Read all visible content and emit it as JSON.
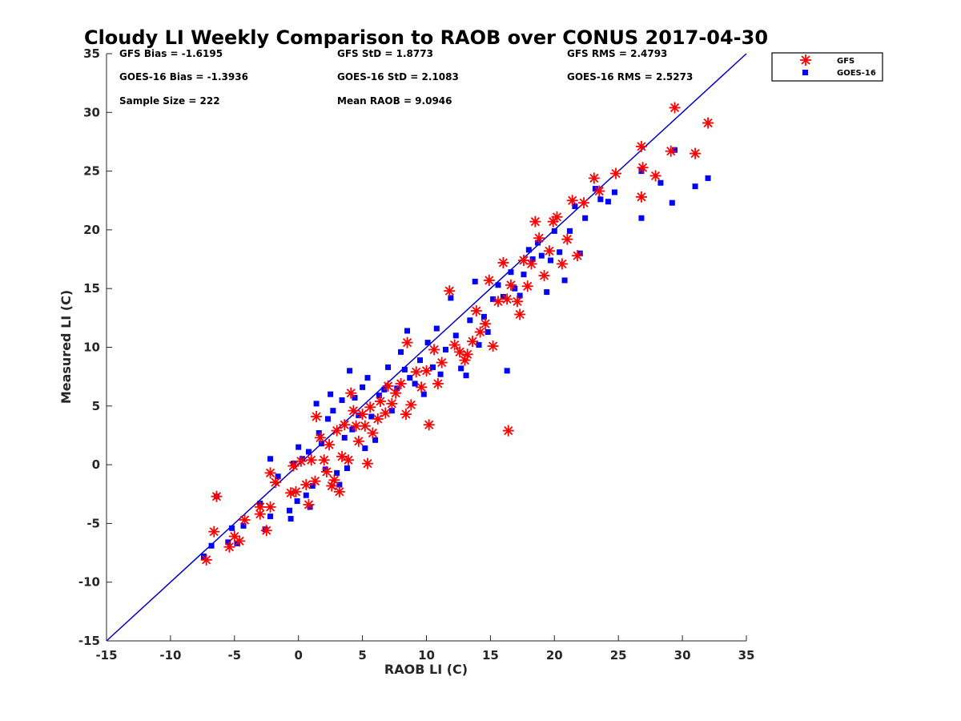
{
  "chart_data": {
    "type": "scatter",
    "title": "Cloudy LI Weekly Comparison to RAOB over CONUS 2017-04-30",
    "xlabel": "RAOB LI (C)",
    "ylabel": "Measured LI (C)",
    "xlim": [
      -15,
      35
    ],
    "ylim": [
      -15,
      35
    ],
    "xticks": [
      "-15",
      "-10",
      "-5",
      "0",
      "5",
      "10",
      "15",
      "20",
      "25",
      "30",
      "35"
    ],
    "yticks": [
      "-15",
      "-10",
      "-5",
      "0",
      "5",
      "10",
      "15",
      "20",
      "25",
      "30",
      "35"
    ],
    "grid": false,
    "legend_position": "top-right, outside plot",
    "reference_line": {
      "from": [
        -15,
        -15
      ],
      "to": [
        35,
        35
      ],
      "color": "#0000cc"
    },
    "stats": {
      "gfs_bias": "GFS Bias = -1.6195",
      "gfs_std": "GFS StD = 1.8773",
      "gfs_rms": "GFS RMS = 2.4793",
      "goes_bias": "GOES-16 Bias = -1.3936",
      "goes_std": "GOES-16 StD = 2.1083",
      "goes_rms": "GOES-16 RMS = 2.5273",
      "sample_size": "Sample Size = 222",
      "mean_raob": "Mean RAOB = 9.0946"
    },
    "series": [
      {
        "name": "GFS",
        "marker": "asterisk",
        "color": "#ff0000",
        "points": [
          [
            -7.2,
            -8.1
          ],
          [
            -6.6,
            -5.7
          ],
          [
            -6.4,
            -2.7
          ],
          [
            -5.4,
            -7.0
          ],
          [
            -5.0,
            -6.1
          ],
          [
            -4.6,
            -6.5
          ],
          [
            -4.2,
            -4.7
          ],
          [
            -3.0,
            -3.6
          ],
          [
            -3.0,
            -4.2
          ],
          [
            -2.5,
            -5.6
          ],
          [
            -2.2,
            -3.6
          ],
          [
            -2.2,
            -0.7
          ],
          [
            -1.8,
            -1.5
          ],
          [
            -0.6,
            -2.4
          ],
          [
            -0.4,
            -0.1
          ],
          [
            -0.2,
            -2.3
          ],
          [
            0.2,
            0.3
          ],
          [
            0.6,
            -1.7
          ],
          [
            0.8,
            -3.4
          ],
          [
            1.0,
            0.4
          ],
          [
            1.3,
            -1.4
          ],
          [
            1.4,
            4.1
          ],
          [
            1.7,
            2.3
          ],
          [
            2.0,
            0.4
          ],
          [
            2.2,
            -0.6
          ],
          [
            2.4,
            1.7
          ],
          [
            2.6,
            -1.8
          ],
          [
            2.8,
            -1.3
          ],
          [
            3.0,
            2.9
          ],
          [
            3.2,
            -2.3
          ],
          [
            3.4,
            0.7
          ],
          [
            3.6,
            3.4
          ],
          [
            3.9,
            0.4
          ],
          [
            4.1,
            6.1
          ],
          [
            4.3,
            4.6
          ],
          [
            4.5,
            3.3
          ],
          [
            4.7,
            2.0
          ],
          [
            5.0,
            4.3
          ],
          [
            5.2,
            3.3
          ],
          [
            5.4,
            0.1
          ],
          [
            5.6,
            4.9
          ],
          [
            5.8,
            2.7
          ],
          [
            6.2,
            3.9
          ],
          [
            6.4,
            5.4
          ],
          [
            6.8,
            4.4
          ],
          [
            7.0,
            6.7
          ],
          [
            7.3,
            5.2
          ],
          [
            7.6,
            6.1
          ],
          [
            8.0,
            6.9
          ],
          [
            8.4,
            4.3
          ],
          [
            8.5,
            10.4
          ],
          [
            8.8,
            5.1
          ],
          [
            9.2,
            7.9
          ],
          [
            9.6,
            6.6
          ],
          [
            10.0,
            8.0
          ],
          [
            10.2,
            3.4
          ],
          [
            10.6,
            9.8
          ],
          [
            10.9,
            6.9
          ],
          [
            11.2,
            8.7
          ],
          [
            11.8,
            14.8
          ],
          [
            12.2,
            10.2
          ],
          [
            12.6,
            9.6
          ],
          [
            13.0,
            8.9
          ],
          [
            13.2,
            9.4
          ],
          [
            13.6,
            10.5
          ],
          [
            13.9,
            13.1
          ],
          [
            14.2,
            11.3
          ],
          [
            14.6,
            12.0
          ],
          [
            14.9,
            15.7
          ],
          [
            15.2,
            10.1
          ],
          [
            15.6,
            13.9
          ],
          [
            16.0,
            17.2
          ],
          [
            16.3,
            14.1
          ],
          [
            16.4,
            2.9
          ],
          [
            16.6,
            15.3
          ],
          [
            17.1,
            13.9
          ],
          [
            17.3,
            12.8
          ],
          [
            17.6,
            17.4
          ],
          [
            17.9,
            15.2
          ],
          [
            18.2,
            17.1
          ],
          [
            18.5,
            20.7
          ],
          [
            18.8,
            19.3
          ],
          [
            19.2,
            16.1
          ],
          [
            19.6,
            18.2
          ],
          [
            19.9,
            20.7
          ],
          [
            20.2,
            21.1
          ],
          [
            20.6,
            17.1
          ],
          [
            21.0,
            19.2
          ],
          [
            21.4,
            22.5
          ],
          [
            21.8,
            17.8
          ],
          [
            22.3,
            22.3
          ],
          [
            23.1,
            24.4
          ],
          [
            23.5,
            23.3
          ],
          [
            24.8,
            24.8
          ],
          [
            26.8,
            27.1
          ],
          [
            26.8,
            22.8
          ],
          [
            26.9,
            25.3
          ],
          [
            27.9,
            24.6
          ],
          [
            29.1,
            26.7
          ],
          [
            29.4,
            30.4
          ],
          [
            31.0,
            26.5
          ],
          [
            32.0,
            29.1
          ]
        ]
      },
      {
        "name": "GOES-16",
        "marker": "square",
        "color": "#0000ff",
        "points": [
          [
            -7.4,
            -7.8
          ],
          [
            -6.8,
            -6.9
          ],
          [
            -6.4,
            -2.7
          ],
          [
            -5.5,
            -6.6
          ],
          [
            -5.2,
            -5.4
          ],
          [
            -4.8,
            -6.7
          ],
          [
            -4.3,
            -5.2
          ],
          [
            -3.0,
            -3.3
          ],
          [
            -2.6,
            -5.5
          ],
          [
            -2.2,
            0.5
          ],
          [
            -2.2,
            -4.4
          ],
          [
            -1.6,
            -1.0
          ],
          [
            -0.7,
            -3.9
          ],
          [
            -0.6,
            -4.6
          ],
          [
            -0.4,
            0.1
          ],
          [
            -0.1,
            -3.1
          ],
          [
            0.0,
            1.5
          ],
          [
            0.3,
            0.5
          ],
          [
            0.6,
            -2.6
          ],
          [
            0.8,
            1.1
          ],
          [
            0.9,
            -3.6
          ],
          [
            1.1,
            -1.8
          ],
          [
            1.4,
            5.2
          ],
          [
            1.6,
            2.7
          ],
          [
            1.8,
            1.8
          ],
          [
            2.1,
            -0.4
          ],
          [
            2.3,
            3.9
          ],
          [
            2.5,
            6.0
          ],
          [
            2.7,
            4.6
          ],
          [
            3.0,
            -0.7
          ],
          [
            3.2,
            -1.7
          ],
          [
            3.4,
            5.5
          ],
          [
            3.6,
            2.3
          ],
          [
            3.8,
            -0.3
          ],
          [
            4.0,
            8.0
          ],
          [
            4.2,
            3.0
          ],
          [
            4.4,
            5.7
          ],
          [
            4.7,
            4.2
          ],
          [
            5.0,
            6.6
          ],
          [
            5.2,
            1.4
          ],
          [
            5.4,
            7.4
          ],
          [
            5.7,
            4.1
          ],
          [
            6.0,
            2.1
          ],
          [
            6.3,
            5.9
          ],
          [
            6.7,
            6.4
          ],
          [
            7.0,
            8.3
          ],
          [
            7.3,
            4.6
          ],
          [
            7.7,
            6.5
          ],
          [
            8.0,
            9.6
          ],
          [
            8.3,
            8.1
          ],
          [
            8.5,
            11.4
          ],
          [
            8.7,
            7.4
          ],
          [
            9.1,
            6.9
          ],
          [
            9.5,
            8.9
          ],
          [
            9.8,
            6.0
          ],
          [
            10.1,
            10.4
          ],
          [
            10.5,
            8.3
          ],
          [
            10.8,
            11.6
          ],
          [
            11.1,
            7.7
          ],
          [
            11.5,
            9.8
          ],
          [
            11.9,
            14.2
          ],
          [
            12.3,
            11.0
          ],
          [
            12.7,
            8.2
          ],
          [
            13.1,
            7.6
          ],
          [
            13.4,
            12.3
          ],
          [
            13.8,
            15.6
          ],
          [
            14.1,
            10.2
          ],
          [
            14.5,
            12.6
          ],
          [
            14.8,
            11.3
          ],
          [
            15.2,
            14.1
          ],
          [
            15.6,
            15.3
          ],
          [
            16.0,
            14.3
          ],
          [
            16.3,
            8.0
          ],
          [
            16.6,
            16.4
          ],
          [
            16.9,
            15.0
          ],
          [
            17.3,
            14.4
          ],
          [
            17.6,
            16.2
          ],
          [
            18.0,
            18.3
          ],
          [
            18.3,
            17.5
          ],
          [
            18.7,
            18.9
          ],
          [
            19.0,
            17.8
          ],
          [
            19.4,
            14.7
          ],
          [
            19.7,
            17.4
          ],
          [
            20.0,
            19.9
          ],
          [
            20.4,
            18.1
          ],
          [
            20.8,
            15.7
          ],
          [
            21.2,
            19.9
          ],
          [
            21.6,
            22.0
          ],
          [
            22.0,
            18.0
          ],
          [
            22.4,
            21.0
          ],
          [
            23.2,
            23.5
          ],
          [
            23.6,
            22.6
          ],
          [
            24.2,
            22.4
          ],
          [
            24.7,
            23.2
          ],
          [
            26.8,
            25.0
          ],
          [
            26.8,
            21.0
          ],
          [
            28.3,
            24.0
          ],
          [
            29.2,
            22.3
          ],
          [
            29.4,
            26.8
          ],
          [
            31.0,
            23.7
          ],
          [
            32.0,
            24.4
          ]
        ]
      }
    ]
  }
}
